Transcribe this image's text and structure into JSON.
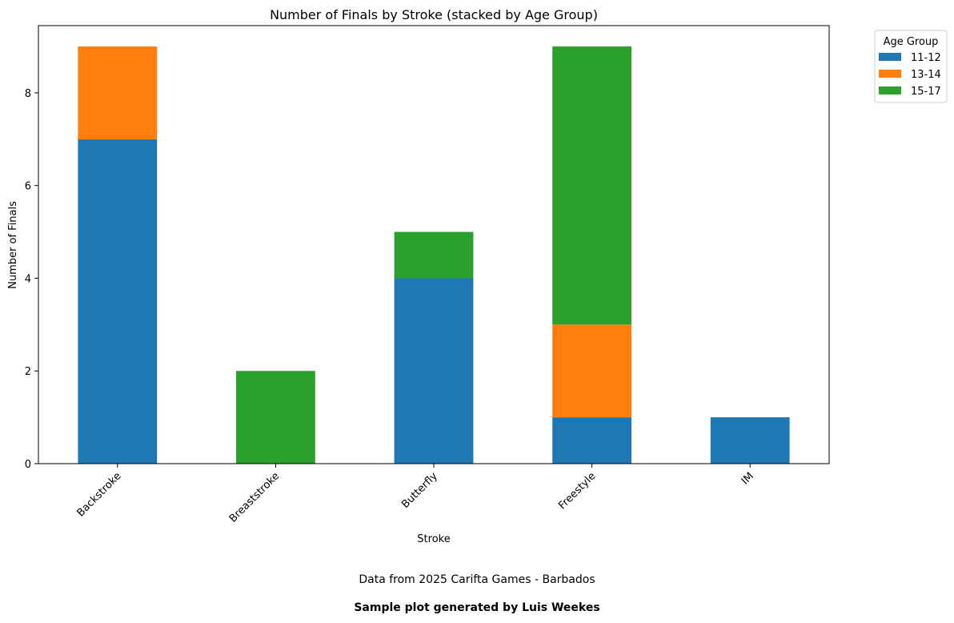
{
  "chart_data": {
    "type": "bar",
    "stacked": true,
    "title": "Number of Finals by Stroke (stacked by Age Group)",
    "xlabel": "Stroke",
    "ylabel": "Number of Finals",
    "categories": [
      "Backstroke",
      "Breaststroke",
      "Butterfly",
      "Freestyle",
      "IM"
    ],
    "series": [
      {
        "name": "11-12",
        "color": "#1f77b4",
        "values": [
          7,
          0,
          4,
          1,
          1
        ]
      },
      {
        "name": "13-14",
        "color": "#ff7f0e",
        "values": [
          2,
          0,
          0,
          2,
          0
        ]
      },
      {
        "name": "15-17",
        "color": "#2ca02c",
        "values": [
          0,
          2,
          1,
          6,
          0
        ]
      }
    ],
    "ylim": [
      0,
      9.45
    ],
    "yticks": [
      0,
      2,
      4,
      6,
      8
    ],
    "grid": false,
    "legend": {
      "title": "Age Group",
      "placement": "outside-top-right"
    }
  },
  "captions": {
    "source": "Data from 2025 Carifta Games - Barbados",
    "credit": "Sample plot generated by Luis Weekes"
  }
}
